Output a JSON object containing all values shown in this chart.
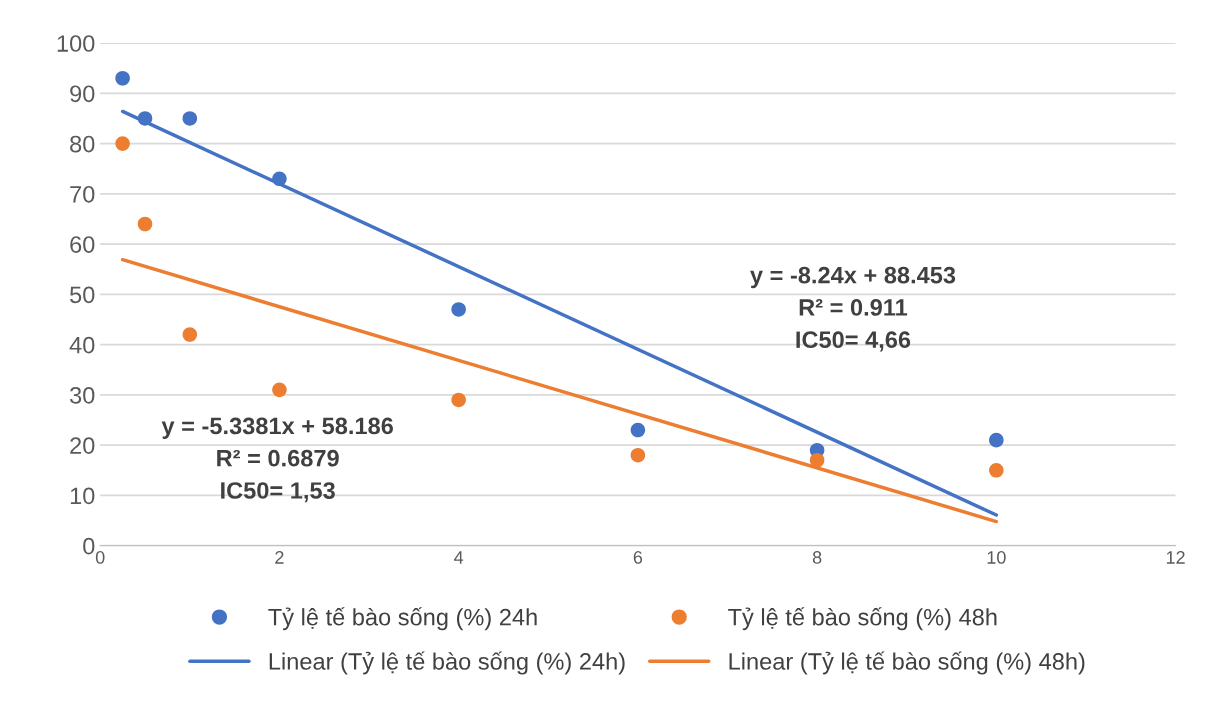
{
  "chart_data": {
    "type": "scatter",
    "xlim": [
      0,
      12
    ],
    "xticks": [
      0,
      2,
      4,
      6,
      8,
      10,
      12
    ],
    "ylim": [
      0,
      100
    ],
    "yticks": [
      0,
      10,
      20,
      30,
      40,
      50,
      60,
      70,
      80,
      90,
      100
    ],
    "grid": "y",
    "legend": "bottom",
    "series": [
      {
        "name": "Tỷ lệ tế bào sống (%) 24h",
        "marker": "circle",
        "color": "#4472c4",
        "x": [
          0.25,
          0.5,
          1,
          2,
          4,
          6,
          8,
          10
        ],
        "values": [
          93,
          85,
          85,
          73,
          47,
          23,
          19,
          21
        ]
      },
      {
        "name": "Tỷ lệ tế bào sống (%) 48h",
        "marker": "circle",
        "color": "#ed7d31",
        "x": [
          0.25,
          0.5,
          1,
          2,
          4,
          6,
          8,
          10
        ],
        "values": [
          80,
          64,
          42,
          31,
          29,
          18,
          17,
          15
        ]
      },
      {
        "name": "Linear (Tỷ lệ tế bào sống (%) 24h)",
        "type": "line",
        "line_style": "solid",
        "color": "#4472c4",
        "x": [
          0.25,
          10
        ],
        "values": [
          86.4,
          6.1
        ]
      },
      {
        "name": "Linear (Tỷ lệ tế bào sống (%) 48h)",
        "type": "line",
        "line_style": "solid",
        "color": "#ed7d31",
        "x": [
          0.25,
          10
        ],
        "values": [
          56.9,
          4.8
        ]
      }
    ],
    "annotations": [
      "y = -8.24x + 88.453\nR² = 0.911\nIC50= 4,66",
      "y = -5.3381x + 58.186\nR² = 0.6879\nIC50= 1,53"
    ]
  }
}
